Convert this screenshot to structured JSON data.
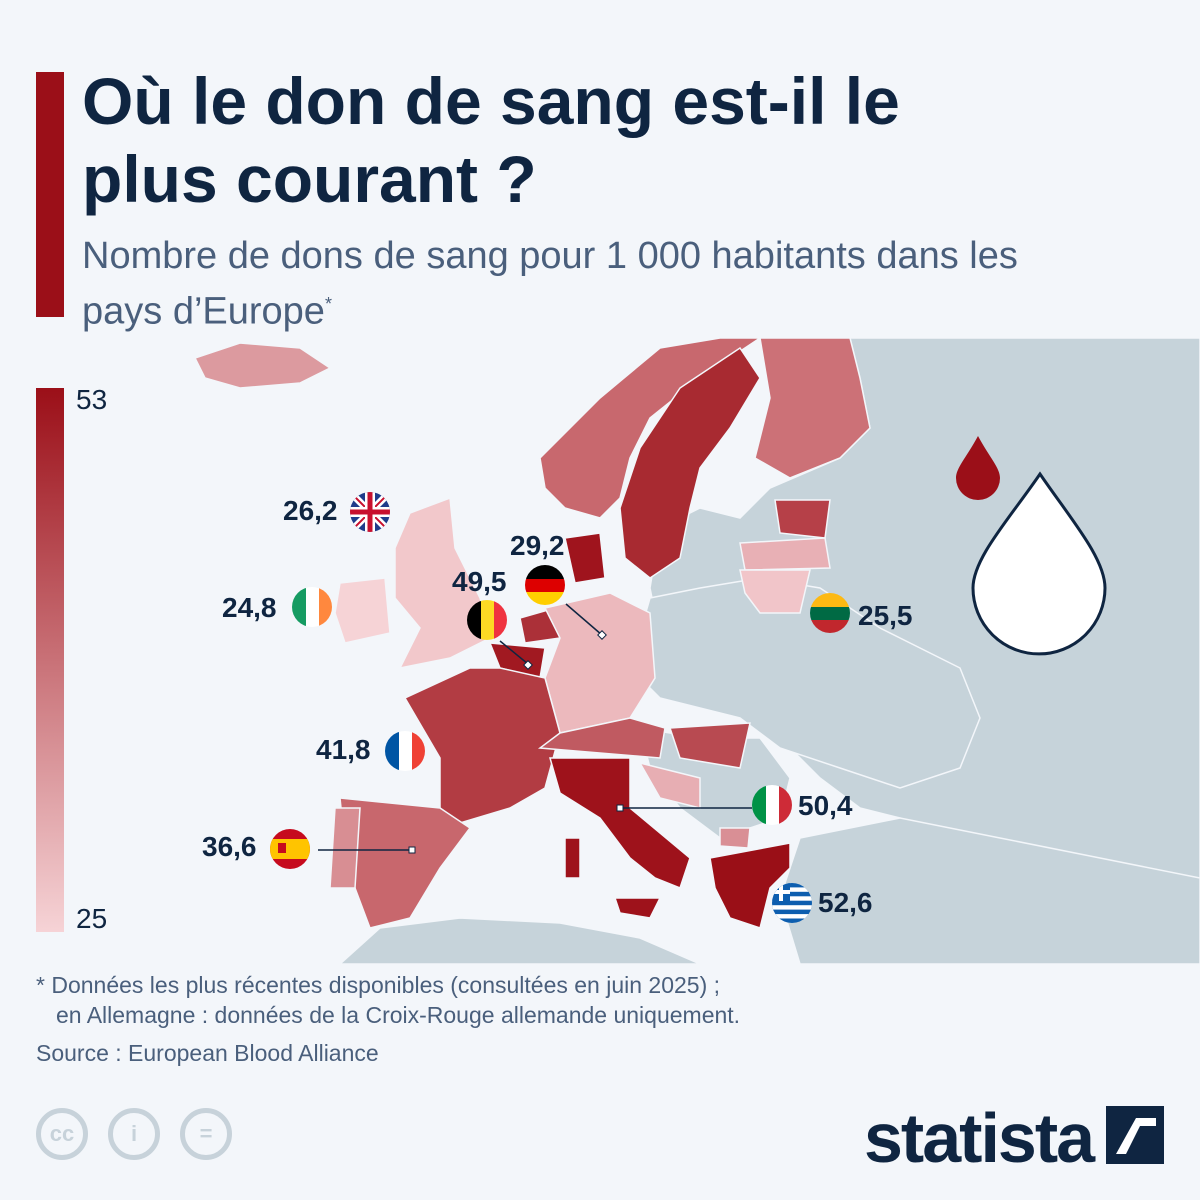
{
  "title": "Où le don de sang est-il le plus courant ?",
  "subtitle": "Nombre de dons de sang pour 1 000 habitants dans les pays d’Europe",
  "subtitle_mark": "*",
  "legend": {
    "max": "53",
    "min": "25",
    "color_max": "#9b0f18",
    "color_min": "#f6d3d6"
  },
  "colors": {
    "no_data_land": "#c6d3da",
    "sea": "#f3f6fa"
  },
  "countries": [
    {
      "name": "Royaume-Uni",
      "value": "26,2",
      "flag": "uk-flag"
    },
    {
      "name": "Irlande",
      "value": "24,8",
      "flag": "ireland-flag"
    },
    {
      "name": "Allemagne",
      "value": "29,2",
      "flag": "germany-flag"
    },
    {
      "name": "Belgique",
      "value": "49,5",
      "flag": "belgium-flag"
    },
    {
      "name": "France",
      "value": "41,8",
      "flag": "france-flag"
    },
    {
      "name": "Espagne",
      "value": "36,6",
      "flag": "spain-flag"
    },
    {
      "name": "Italie",
      "value": "50,4",
      "flag": "italy-flag"
    },
    {
      "name": "Grèce",
      "value": "52,6",
      "flag": "greece-flag"
    },
    {
      "name": "Lituanie",
      "value": "25,5",
      "flag": "lithuania-flag"
    }
  ],
  "footnote_1": "* Données les plus récentes disponibles (consultées en juin 2025) ;",
  "footnote_2": "en Allemagne : données de la Croix-Rouge allemande uniquement.",
  "source": "Source : European Blood Alliance",
  "license_icons": [
    "cc-icon",
    "attribution-icon",
    "no-derivatives-icon"
  ],
  "brand": "statista"
}
